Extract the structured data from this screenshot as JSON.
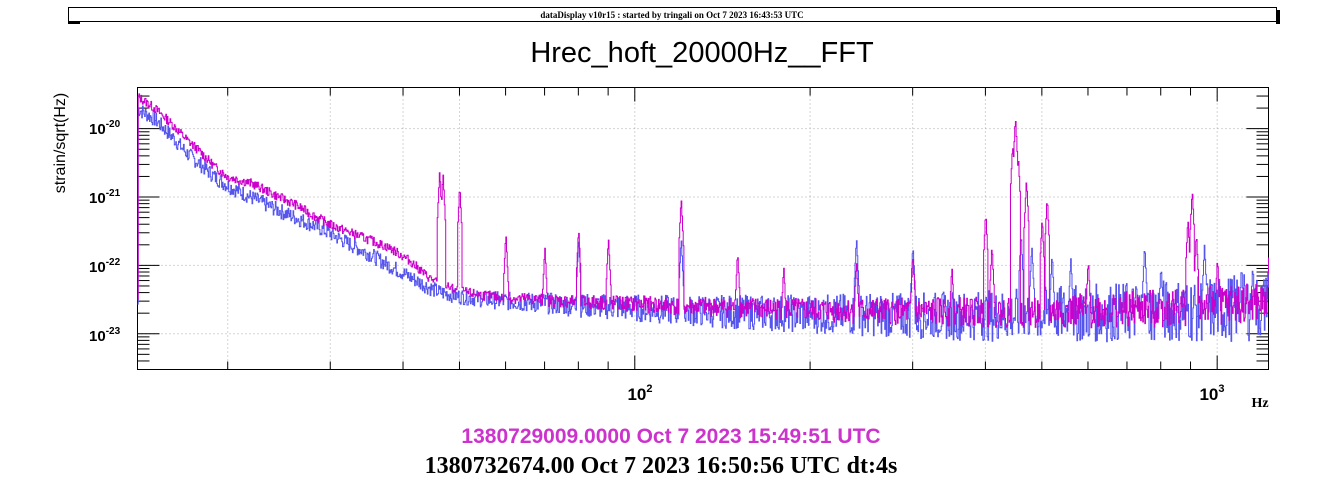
{
  "header": {
    "banner": "dataDisplay v10r15 : started by tringali on Oct  7 2023 16:43:53 UTC"
  },
  "footer": {
    "time_1": "1380729009.0000 Oct 7 2023 15:49:51 UTC",
    "time_2": "1380732674.00 Oct 7 2023 16:50:56 UTC dt:4s"
  },
  "colors": {
    "series_1": "#cc00cc",
    "series_2": "#5555ee",
    "time_1": "#cc33cc",
    "grid": "#aaaaaa"
  },
  "chart_data": {
    "type": "line",
    "title": "Hrec_hoft_20000Hz__FFT",
    "xlabel": "Hz",
    "ylabel": "strain/sqrt(Hz)",
    "xscale": "log",
    "yscale": "log",
    "xlim": [
      14,
      1225
    ],
    "ylim": [
      3e-24,
      4e-20
    ],
    "grid": true,
    "x_tick_labels": [
      {
        "value": 100,
        "base": "10",
        "exp": "2"
      },
      {
        "value": 1000,
        "base": "10",
        "exp": "3"
      }
    ],
    "y_tick_labels": [
      {
        "value": 1e-20,
        "base": "10",
        "exp": "-20"
      },
      {
        "value": 1e-21,
        "base": "10",
        "exp": "-21"
      },
      {
        "value": 1e-22,
        "base": "10",
        "exp": "-22"
      },
      {
        "value": 1e-23,
        "base": "10",
        "exp": "-23"
      }
    ],
    "series": [
      {
        "color": "#cc00cc",
        "step": true,
        "points": [
          [
            14,
            3e-20
          ],
          [
            15,
            2e-20
          ],
          [
            16,
            1.2e-20
          ],
          [
            17,
            7e-21
          ],
          [
            18,
            4.5e-21
          ],
          [
            19,
            2.8e-21
          ],
          [
            20,
            2e-21
          ],
          [
            22,
            1.6e-21
          ],
          [
            24,
            1.1e-21
          ],
          [
            26,
            8e-22
          ],
          [
            28,
            5.5e-22
          ],
          [
            30,
            4e-22
          ],
          [
            32,
            3.2e-22
          ],
          [
            35,
            2.4e-22
          ],
          [
            38,
            1.8e-22
          ],
          [
            41,
            1.2e-22
          ],
          [
            44,
            7e-23
          ],
          [
            46,
            5.5e-23
          ],
          [
            49,
            4.5e-23
          ],
          [
            52,
            4e-23
          ],
          [
            55,
            3.7e-23
          ],
          [
            58,
            3.5e-23
          ],
          [
            60,
            3.4e-23
          ],
          [
            66,
            3.3e-23
          ],
          [
            72,
            3.1e-23
          ],
          [
            80,
            3e-23
          ],
          [
            90,
            2.9e-23
          ],
          [
            100,
            2.8e-23
          ],
          [
            120,
            2.6e-23
          ],
          [
            150,
            2.5e-23
          ],
          [
            200,
            2.3e-23
          ],
          [
            300,
            2.2e-23
          ],
          [
            400,
            2.2e-23
          ],
          [
            500,
            2.2e-23
          ],
          [
            600,
            2.3e-23
          ],
          [
            800,
            2.5e-23
          ],
          [
            1000,
            2.8e-23
          ],
          [
            1225,
            3e-23
          ]
        ],
        "peaks": [
          [
            46.2,
            2.5e-21
          ],
          [
            46.8,
            2.3e-21
          ],
          [
            50,
            1.5e-21
          ],
          [
            60,
            3e-22
          ],
          [
            70,
            1.9e-22
          ],
          [
            80,
            3.5e-22
          ],
          [
            90,
            2.6e-22
          ],
          [
            120,
            1e-21
          ],
          [
            150,
            1.6e-22
          ],
          [
            180,
            1e-22
          ],
          [
            240,
            1.2e-22
          ],
          [
            300,
            1.5e-22
          ],
          [
            350,
            1e-22
          ],
          [
            400,
            6e-22
          ],
          [
            410,
            2e-22
          ],
          [
            445,
            6e-21
          ],
          [
            450,
            1.5e-20
          ],
          [
            455,
            4e-21
          ],
          [
            470,
            1.8e-21
          ],
          [
            500,
            5e-22
          ],
          [
            510,
            1e-21
          ],
          [
            600,
            1.2e-22
          ],
          [
            890,
            5e-22
          ],
          [
            905,
            1.3e-21
          ],
          [
            920,
            3e-22
          ],
          [
            1000,
            1.3e-22
          ],
          [
            1225,
            1.3e-22
          ]
        ]
      },
      {
        "color": "#5555ee",
        "step": true,
        "points": [
          [
            14,
            2e-20
          ],
          [
            15,
            1.4e-20
          ],
          [
            16,
            8e-21
          ],
          [
            17,
            4.5e-21
          ],
          [
            18,
            3e-21
          ],
          [
            19,
            2e-21
          ],
          [
            20,
            1.5e-21
          ],
          [
            22,
            1e-21
          ],
          [
            24,
            7e-22
          ],
          [
            26,
            5.2e-22
          ],
          [
            28,
            4e-22
          ],
          [
            30,
            3e-22
          ],
          [
            32,
            2.2e-22
          ],
          [
            35,
            1.5e-22
          ],
          [
            38,
            1e-22
          ],
          [
            41,
            7e-23
          ],
          [
            44,
            5e-23
          ],
          [
            46,
            4.2e-23
          ],
          [
            50,
            3.6e-23
          ],
          [
            55,
            3.3e-23
          ],
          [
            60,
            3.1e-23
          ],
          [
            70,
            2.9e-23
          ],
          [
            80,
            2.7e-23
          ],
          [
            90,
            2.6e-23
          ],
          [
            100,
            2.5e-23
          ],
          [
            120,
            2.3e-23
          ],
          [
            150,
            2.2e-23
          ],
          [
            200,
            2.1e-23
          ],
          [
            300,
            2e-23
          ],
          [
            400,
            2e-23
          ],
          [
            500,
            2.1e-23
          ],
          [
            600,
            2.2e-23
          ],
          [
            800,
            2.4e-23
          ],
          [
            1000,
            2.6e-23
          ],
          [
            1225,
            2.8e-23
          ]
        ],
        "peaks": [
          [
            80,
            2.6e-22
          ],
          [
            120,
            2.6e-22
          ],
          [
            240,
            2.6e-22
          ],
          [
            300,
            2e-22
          ],
          [
            460,
            3e-22
          ],
          [
            480,
            2e-22
          ],
          [
            520,
            1.5e-22
          ],
          [
            560,
            1.3e-22
          ],
          [
            750,
            2e-22
          ],
          [
            800,
            1e-22
          ],
          [
            950,
            2e-22
          ],
          [
            1100,
            1e-22
          ],
          [
            1150,
            1e-22
          ],
          [
            1225,
            8e-23
          ]
        ]
      }
    ]
  }
}
